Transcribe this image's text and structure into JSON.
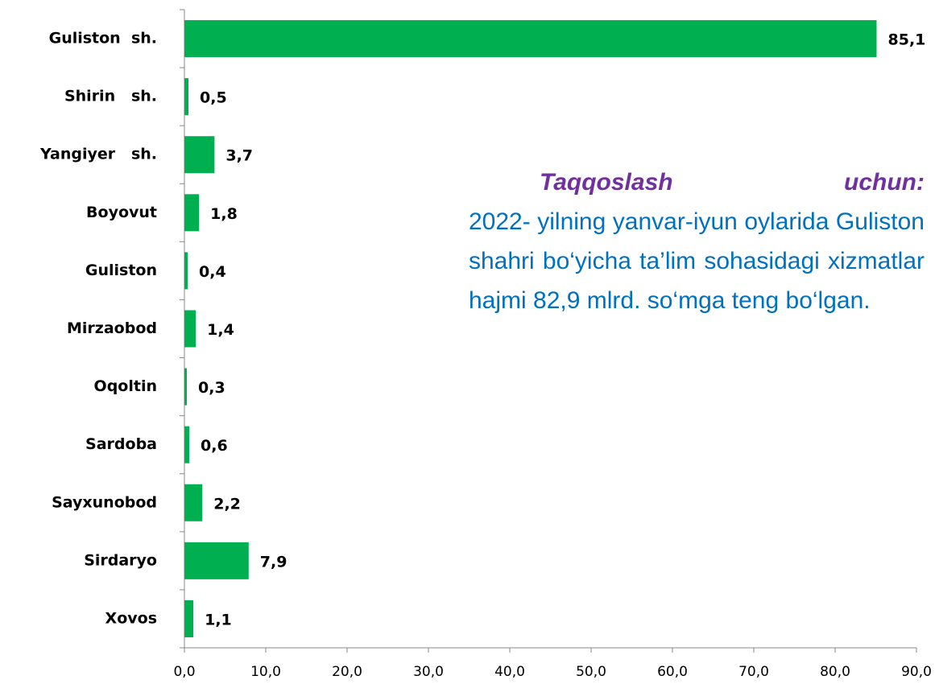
{
  "chart_data": {
    "type": "bar",
    "orientation": "horizontal",
    "categories": [
      "Guliston  sh.",
      "Shirin   sh.",
      "Yangiyer   sh.",
      "Boyovut",
      "Guliston",
      "Mirzaobod",
      "Oqoltin",
      "Sardoba",
      "Sayxunobod",
      "Sirdaryo",
      "Xovos"
    ],
    "values": [
      85.1,
      0.5,
      3.7,
      1.8,
      0.4,
      1.4,
      0.3,
      0.6,
      2.2,
      7.9,
      1.1
    ],
    "value_labels": [
      "85,1",
      "0,5",
      "3,7",
      "1,8",
      "0,4",
      "1,4",
      "0,3",
      "0,6",
      "2,2",
      "7,9",
      "1,1"
    ],
    "color": "#00b050",
    "xlim": [
      0,
      90
    ],
    "xticks": [
      {
        "value": 0,
        "label": "0,0"
      },
      {
        "value": 10,
        "label": "10,0"
      },
      {
        "value": 20,
        "label": "20,0"
      },
      {
        "value": 30,
        "label": "30,0"
      },
      {
        "value": 40,
        "label": "40,0"
      },
      {
        "value": 50,
        "label": "50,0"
      },
      {
        "value": 60,
        "label": "60,0"
      },
      {
        "value": 70,
        "label": "70,0"
      },
      {
        "value": 80,
        "label": "80,0"
      },
      {
        "value": 90,
        "label": "90,0"
      }
    ],
    "annotation": {
      "title": "Taqqoslash uchun:",
      "text": "2022- yilning yanvar-iyun oylarida Guliston shahri bo‘yicha ta’lim sohasidagi xizmatlar hajmi 82,9 mlrd. so‘mga teng bo‘lgan."
    }
  }
}
